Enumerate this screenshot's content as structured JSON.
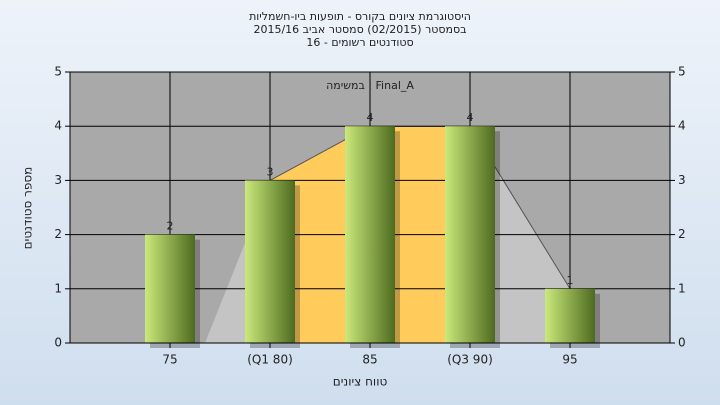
{
  "chart_data": {
    "type": "bar",
    "title_lines": [
      "היסטוגרמת ציונים בקורס - תופעות ביו-חשמליות",
      "בסמסטר  (02/2015)  סמסטר אביב 2015/16",
      "סטודנטים רשומים - 16"
    ],
    "annotation": "במשימה : Final_A",
    "x_label": "טווח ציונים",
    "y_label": "מספר סטודנטים",
    "categories": [
      "75",
      "(Q1 80)",
      "85",
      "(Q3 90)",
      "95"
    ],
    "values": [
      2,
      3,
      4,
      4,
      1
    ],
    "ylim": [
      0,
      5
    ],
    "yticks": [
      0,
      1,
      2,
      3,
      4,
      5
    ],
    "grid": true,
    "color_light": "#cbe97a",
    "color_dark": "#4d6b1f",
    "area_color": "#c4c4c4",
    "quartile_color": "#ffcc5c",
    "plot_background": "#a9a9a9"
  }
}
